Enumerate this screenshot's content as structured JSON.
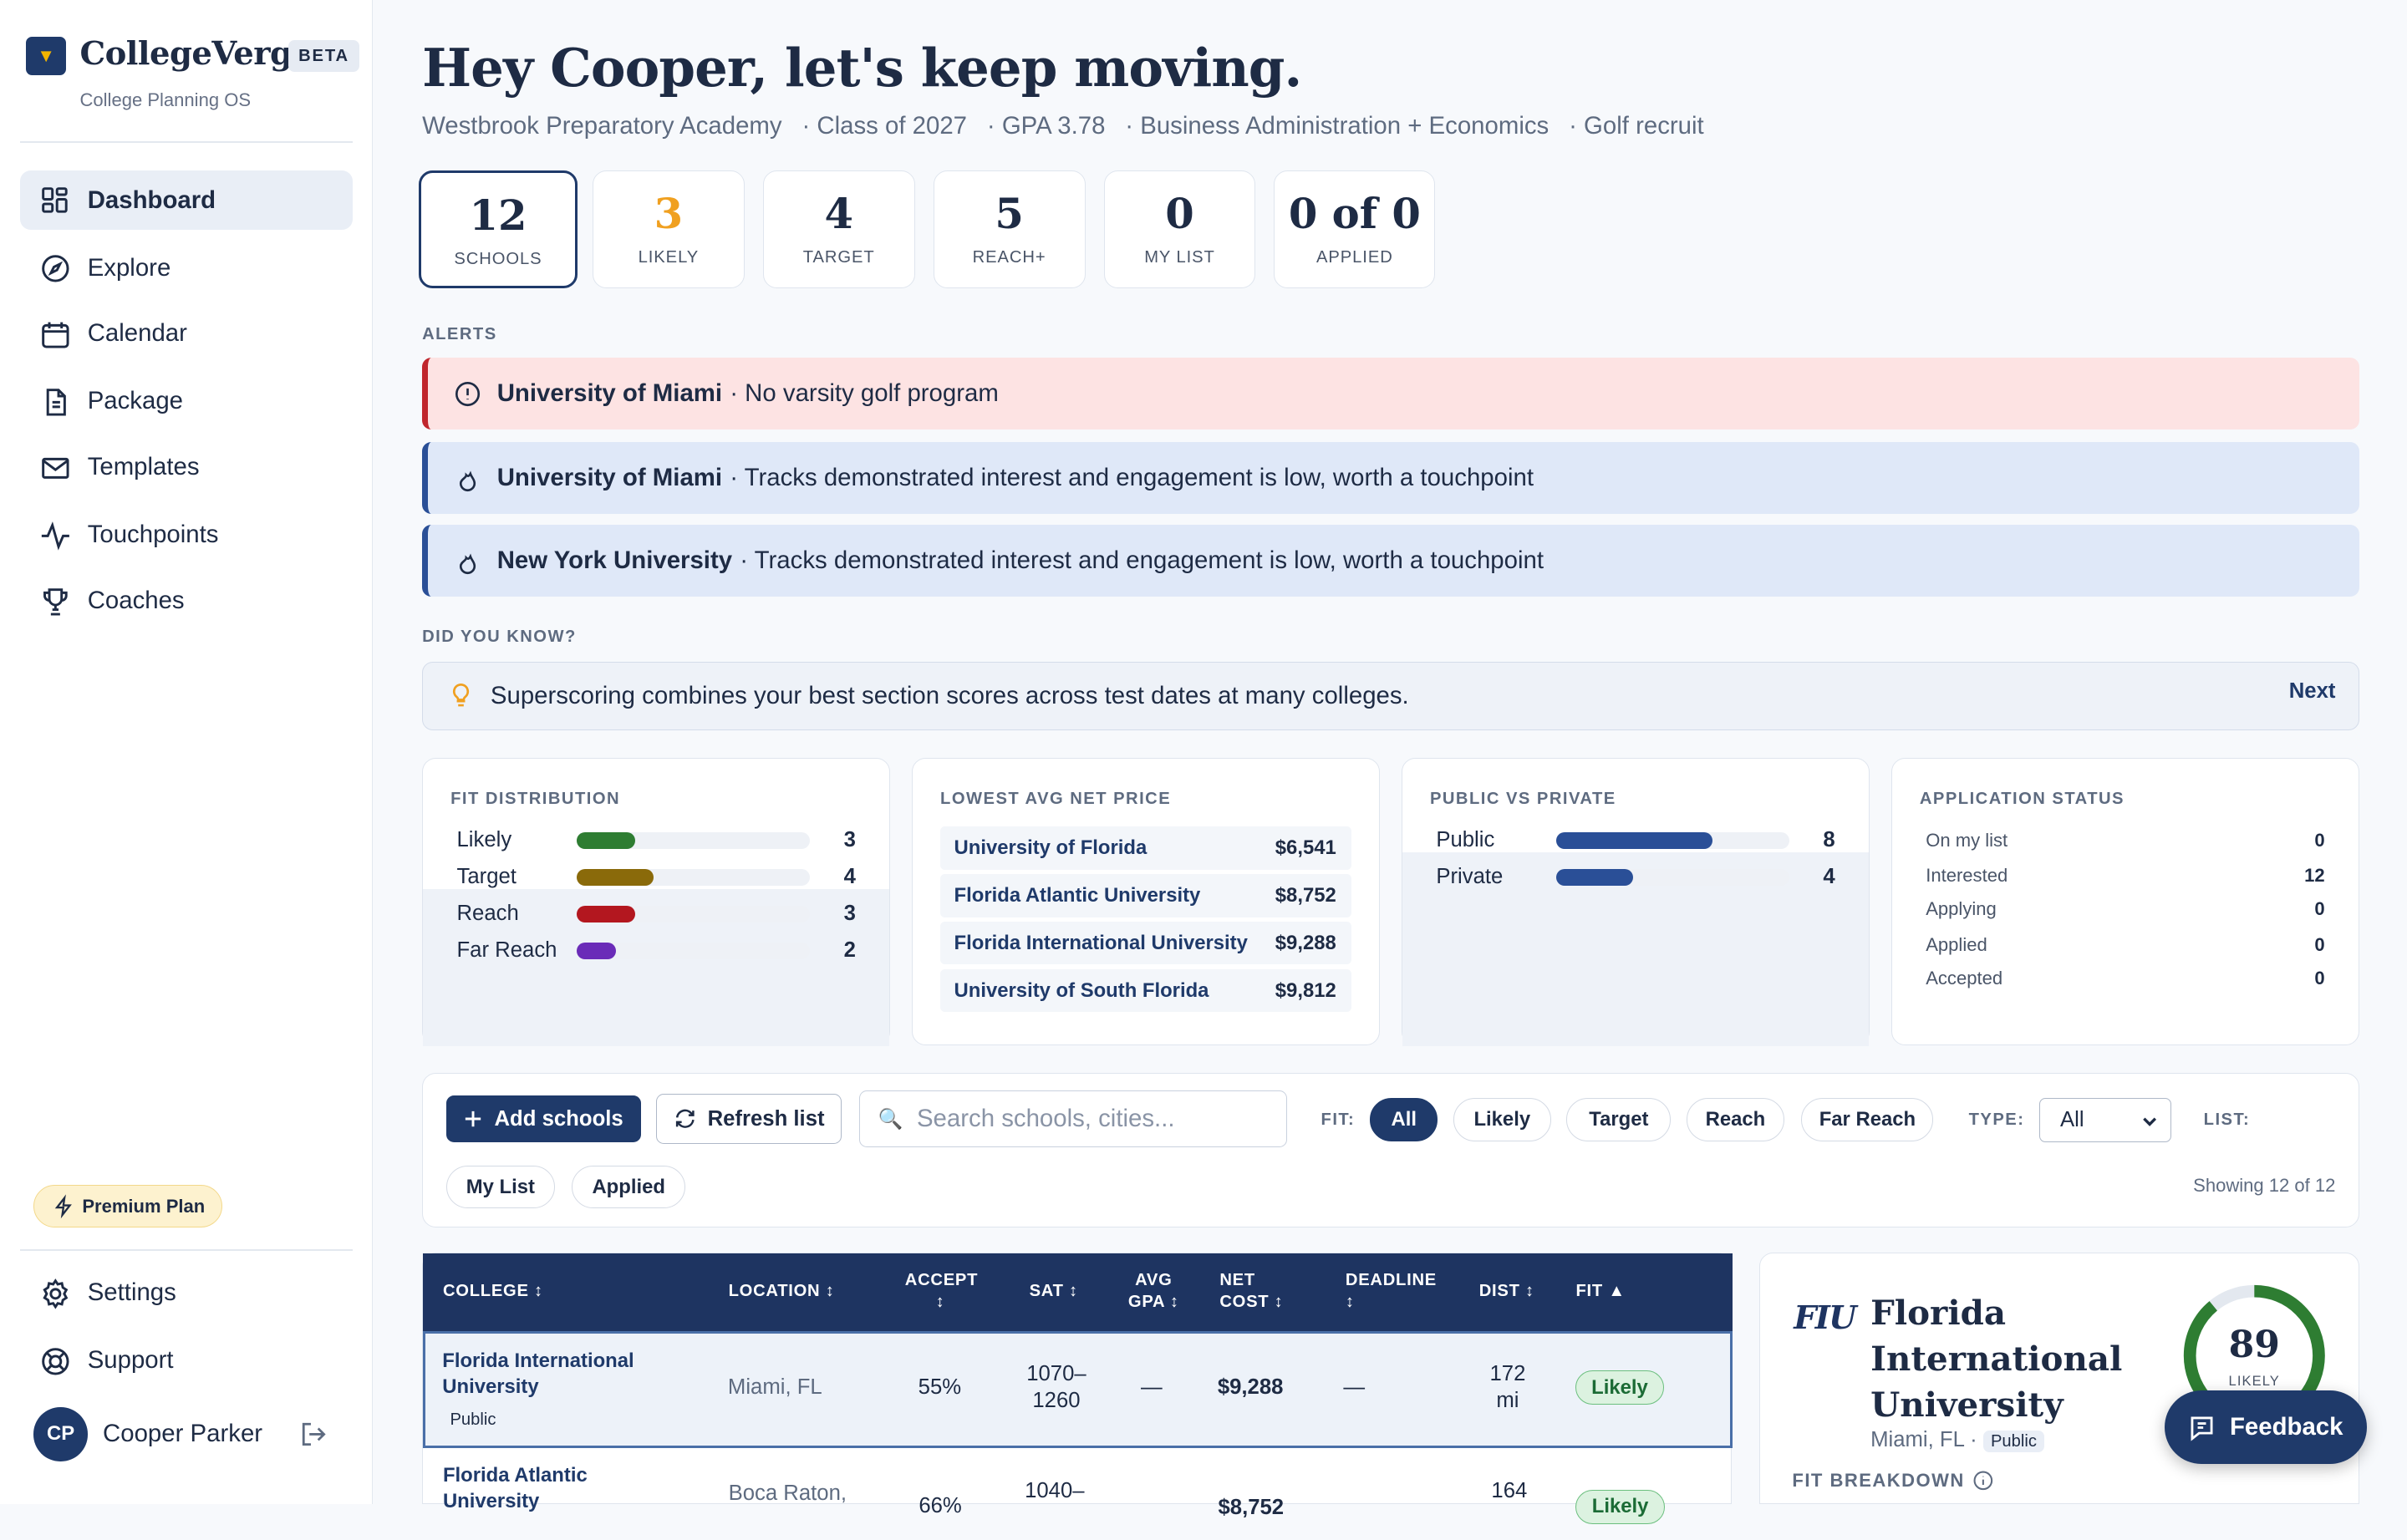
{
  "app": {
    "brand": "CollegeVerge",
    "beta": "BETA",
    "tagline": "College Planning OS"
  },
  "nav": [
    {
      "label": "Dashboard",
      "icon": "grid-icon"
    },
    {
      "label": "Explore",
      "icon": "compass-icon"
    },
    {
      "label": "Calendar",
      "icon": "calendar-icon"
    },
    {
      "label": "Package",
      "icon": "document-icon"
    },
    {
      "label": "Templates",
      "icon": "mail-icon"
    },
    {
      "label": "Touchpoints",
      "icon": "activity-icon"
    },
    {
      "label": "Coaches",
      "icon": "trophy-icon"
    }
  ],
  "plan": "Premium Plan",
  "footer_nav": {
    "settings": "Settings",
    "support": "Support"
  },
  "user": {
    "initials": "CP",
    "name": "Cooper Parker"
  },
  "header": {
    "greeting": "Hey Cooper, let's keep moving.",
    "school": "Westbrook Preparatory Academy",
    "class": "· Class of 2027",
    "gpa": "· GPA 3.78",
    "major": "· Business Administration + Economics",
    "recruit": "· Golf recruit"
  },
  "stats": [
    {
      "value": "12",
      "label": "SCHOOLS"
    },
    {
      "value": "3",
      "label": "LIKELY"
    },
    {
      "value": "4",
      "label": "TARGET"
    },
    {
      "value": "5",
      "label": "REACH+"
    },
    {
      "value": "0",
      "label": "MY LIST"
    },
    {
      "value": "0 of 0",
      "label": "APPLIED"
    }
  ],
  "alerts_label": "ALERTS",
  "alerts": [
    {
      "school": "University of Miami",
      "text": "· No varsity golf program"
    },
    {
      "school": "University of Miami",
      "text": "· Tracks demonstrated interest and engagement is low, worth a touchpoint"
    },
    {
      "school": "New York University",
      "text": "· Tracks demonstrated interest and engagement is low, worth a touchpoint"
    }
  ],
  "did_you_know": {
    "label": "DID YOU KNOW?",
    "text": "Superscoring combines your best section scores across test dates at many colleges.",
    "next": "Next"
  },
  "fit_distribution": {
    "title": "FIT DISTRIBUTION",
    "rows": [
      {
        "label": "Likely",
        "value": "3",
        "fraction": 0.25,
        "color": "#2e7d32"
      },
      {
        "label": "Target",
        "value": "4",
        "fraction": 0.33,
        "color": "#8a6a0a"
      },
      {
        "label": "Reach",
        "value": "3",
        "fraction": 0.25,
        "color": "#b3171f"
      },
      {
        "label": "Far Reach",
        "value": "2",
        "fraction": 0.17,
        "color": "#6a2bb8"
      }
    ]
  },
  "net_price": {
    "title": "LOWEST AVG NET PRICE",
    "rows": [
      {
        "name": "University of Florida",
        "price": "$6,541"
      },
      {
        "name": "Florida Atlantic University",
        "price": "$8,752"
      },
      {
        "name": "Florida International University",
        "price": "$9,288"
      },
      {
        "name": "University of South Florida",
        "price": "$9,812"
      }
    ]
  },
  "public_private": {
    "title": "PUBLIC VS PRIVATE",
    "rows": [
      {
        "label": "Public",
        "value": "8",
        "fraction": 0.67,
        "color": "#2a4f97"
      },
      {
        "label": "Private",
        "value": "4",
        "fraction": 0.33,
        "color": "#2a4f97"
      }
    ]
  },
  "app_status": {
    "title": "APPLICATION STATUS",
    "rows": [
      {
        "label": "On my list",
        "value": "0"
      },
      {
        "label": "Interested",
        "value": "12"
      },
      {
        "label": "Applying",
        "value": "0"
      },
      {
        "label": "Applied",
        "value": "0"
      },
      {
        "label": "Accepted",
        "value": "0"
      }
    ]
  },
  "filters": {
    "add": "Add schools",
    "refresh": "Refresh list",
    "search_placeholder": "Search schools, cities...",
    "fit_label": "FIT:",
    "fit_options": [
      "All",
      "Likely",
      "Target",
      "Reach",
      "Far Reach"
    ],
    "type_label": "TYPE:",
    "type_value": "All",
    "list_label": "LIST:",
    "list_options": [
      "My List",
      "Applied"
    ],
    "showing": "Showing 12 of 12"
  },
  "table": {
    "headers": {
      "college": "COLLEGE ↕",
      "location": "LOCATION ↕",
      "accept1": "ACCEPT",
      "accept2": "↕",
      "sat": "SAT ↕",
      "gpa1": "AVG",
      "gpa2": "GPA ↕",
      "cost1": "NET",
      "cost2": "COST ↕",
      "deadline1": "DEADLINE",
      "deadline2": "↕",
      "dist": "DIST ↕",
      "fit": "FIT ▲"
    },
    "rows": [
      {
        "college1": "Florida International",
        "college2": "University",
        "type": "Public",
        "location": "Miami, FL",
        "accept": "55%",
        "sat1": "1070–",
        "sat2": "1260",
        "gpa": "—",
        "cost": "$9,288",
        "deadline": "—",
        "dist1": "172",
        "dist2": "mi",
        "fit": "Likely"
      },
      {
        "college1": "Florida Atlantic",
        "college2": "University",
        "location": "Boca Raton,",
        "accept": "66%",
        "sat1": "1040–",
        "cost": "$8,752",
        "dist1": "164",
        "fit": "Likely"
      }
    ]
  },
  "detail": {
    "logo": "FIU",
    "name1": "Florida",
    "name2": "International",
    "name3": "University",
    "location": "Miami, FL ·",
    "type": "Public",
    "score": "89",
    "score_label": "LIKELY",
    "score_fraction": 0.89,
    "fit_breakdown": "FIT BREAKDOWN"
  },
  "feedback": "Feedback"
}
